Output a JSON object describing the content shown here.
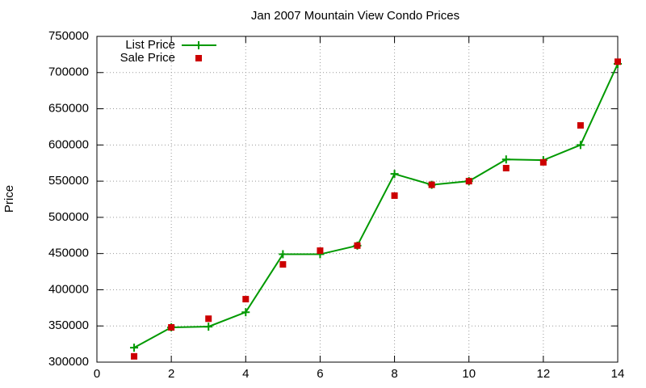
{
  "chart_data": {
    "type": "line",
    "title": "Jan 2007 Mountain View Condo Prices",
    "ylabel": "Price",
    "x": [
      1,
      2,
      3,
      4,
      5,
      6,
      7,
      8,
      9,
      10,
      11,
      12,
      13,
      14
    ],
    "series": [
      {
        "name": "List Price",
        "color": "#009900",
        "marker": "plus",
        "line": true,
        "values": [
          320000,
          348000,
          349000,
          369000,
          449000,
          449000,
          461000,
          560000,
          545000,
          550000,
          580000,
          579000,
          600000,
          712000
        ]
      },
      {
        "name": "Sale Price",
        "color": "#cc0000",
        "marker": "square",
        "line": false,
        "values": [
          308000,
          348000,
          360000,
          387000,
          435000,
          454000,
          461000,
          530000,
          545000,
          550000,
          568000,
          576000,
          627000,
          715000
        ]
      }
    ],
    "xlim": [
      0,
      14
    ],
    "xticks": [
      0,
      2,
      4,
      6,
      8,
      10,
      12,
      14
    ],
    "ylim": [
      300000,
      750000
    ],
    "yticks": [
      300000,
      350000,
      400000,
      450000,
      500000,
      550000,
      600000,
      650000,
      700000,
      750000
    ],
    "grid": true,
    "legend": "upper left"
  }
}
